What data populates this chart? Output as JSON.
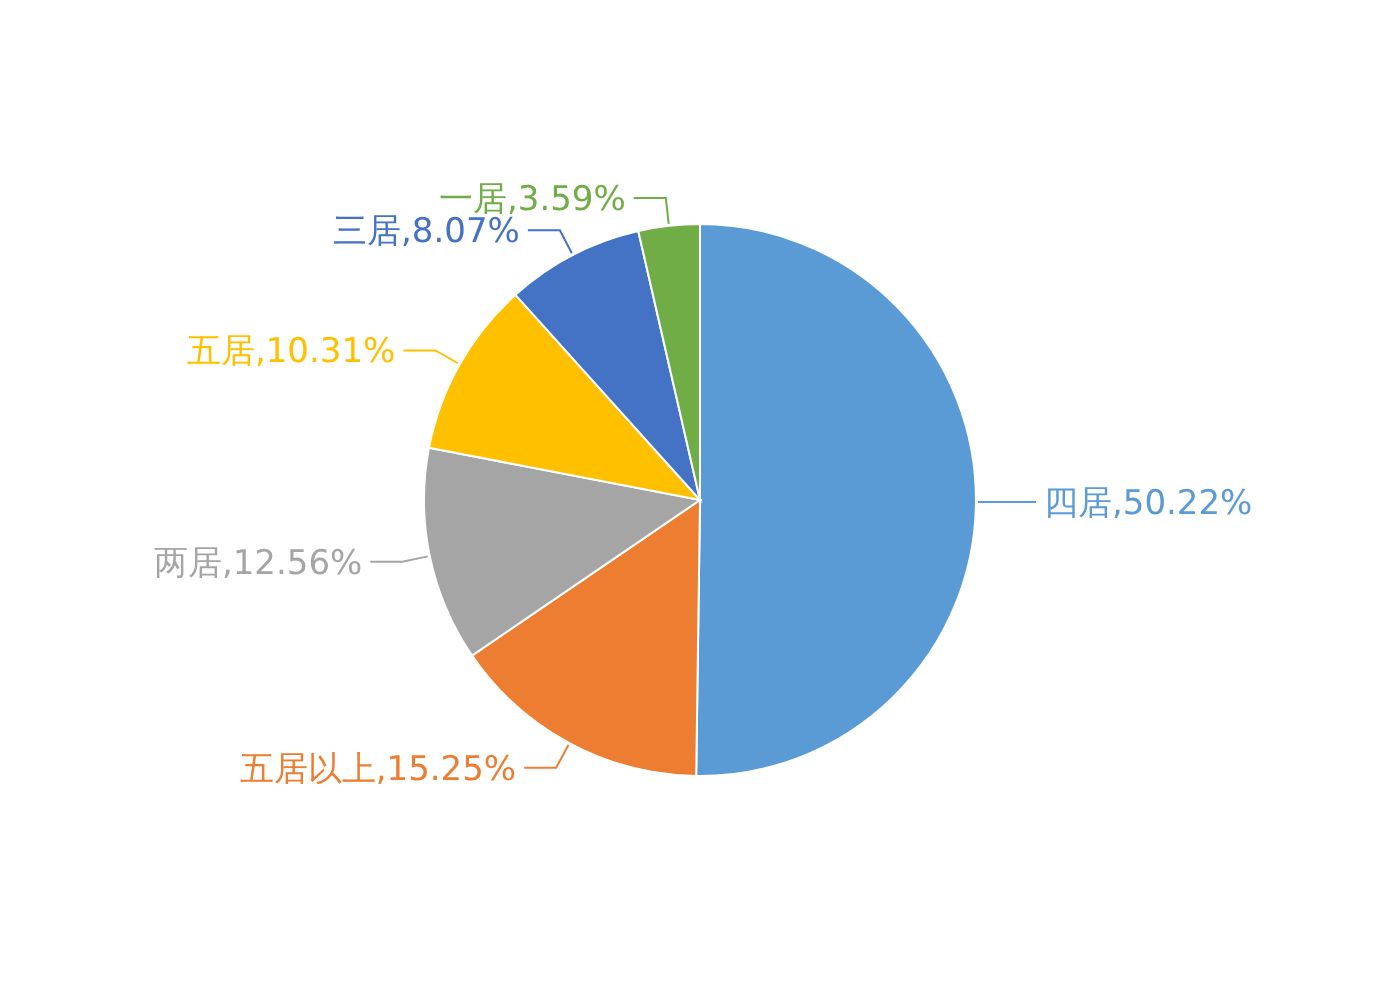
{
  "chart_data": {
    "type": "pie",
    "categories": [
      "四居",
      "五居以上",
      "两居",
      "五居",
      "三居",
      "一居"
    ],
    "values": [
      50.22,
      15.25,
      12.56,
      10.31,
      8.07,
      3.59
    ],
    "colors": [
      "#5b9bd5",
      "#ed7d31",
      "#a5a5a5",
      "#ffc000",
      "#4472c4",
      "#70ad47"
    ],
    "value_labels": [
      ",50.22%",
      ",15.25%",
      ",12.56%",
      ",10.31%",
      ",8.07%",
      ",3.59%"
    ]
  }
}
